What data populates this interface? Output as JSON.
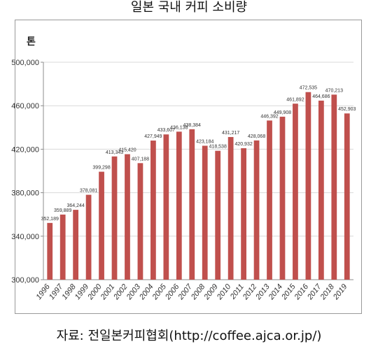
{
  "title": "일본 국내 커피 소비량",
  "caption": "자료: 전일본커피협회(http://coffee.ajca.or.jp/)",
  "chart_data": {
    "type": "bar",
    "unit_label": "톤",
    "categories": [
      "1996",
      "1997",
      "1998",
      "1999",
      "2000",
      "2001",
      "2002",
      "2003",
      "2004",
      "2005",
      "2006",
      "2007",
      "2008",
      "2009",
      "2010",
      "2011",
      "2012",
      "2013",
      "2014",
      "2015",
      "2016",
      "2017",
      "2018",
      "2019"
    ],
    "values": [
      352189,
      359889,
      364244,
      378081,
      399298,
      413343,
      415420,
      407188,
      427949,
      433607,
      436138,
      438384,
      423184,
      418538,
      431217,
      420932,
      428068,
      446392,
      449908,
      461892,
      472535,
      464686,
      470213,
      452903
    ],
    "data_labels": [
      "352,189",
      "359,889",
      "364,244",
      "378,081",
      "399,298",
      "413,343",
      "415,420",
      "407,188",
      "427,949",
      "433,607",
      "436,138",
      "438,384",
      "423,184",
      "418,538",
      "431,217",
      "420,932",
      "428,068",
      "446,392",
      "449,908",
      "461,892",
      "472,535",
      "464,686",
      "470,213",
      "452,903"
    ],
    "y_ticks": [
      300000,
      340000,
      380000,
      420000,
      460000,
      500000
    ],
    "y_tick_labels": [
      "300,000",
      "340,000",
      "380,000",
      "420,000",
      "460,000",
      "500,000"
    ],
    "ylim": [
      300000,
      500000
    ],
    "bar_color": "#c0504d",
    "grid": true
  }
}
